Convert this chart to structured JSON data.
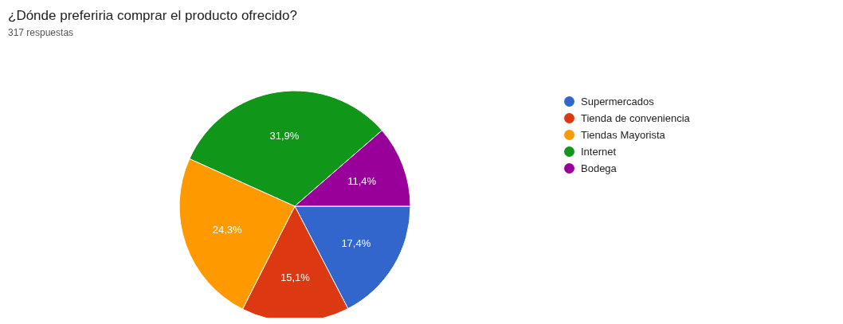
{
  "chart_data": {
    "type": "pie",
    "title": "¿Dónde preferiria comprar el producto ofrecido?",
    "subtitle": "317 respuestas",
    "categories": [
      "Supermercados",
      "Tienda de conveniencia",
      "Tiendas Mayorista",
      "Internet",
      "Bodega"
    ],
    "values": [
      17.4,
      15.1,
      24.3,
      31.9,
      11.4
    ],
    "colors": [
      "#3366cc",
      "#dc3912",
      "#ff9900",
      "#109618",
      "#990099"
    ],
    "value_labels": [
      "17,4%",
      "15,1%",
      "24,3%",
      "31,9%",
      "11,4%"
    ],
    "legend": "right"
  }
}
